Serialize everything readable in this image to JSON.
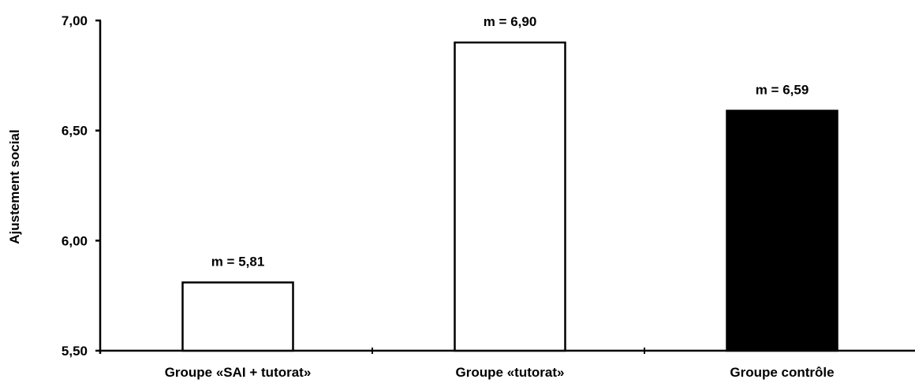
{
  "chart_data": {
    "type": "bar",
    "title": "",
    "xlabel": "",
    "ylabel": "Ajustement social",
    "ylim": [
      5.5,
      7.0
    ],
    "yticks": [
      "5,50",
      "6,00",
      "6,50",
      "7,00"
    ],
    "ytick_values": [
      5.5,
      6.0,
      6.5,
      7.0
    ],
    "categories": [
      "Groupe «SAI + tutorat»",
      "Groupe «tutorat»",
      "Groupe contrôle"
    ],
    "values": [
      5.81,
      6.9,
      6.59
    ],
    "data_labels": [
      "m = 5,81",
      "m = 6,90",
      "m = 6,59"
    ],
    "bar_colors": [
      "#ffffff",
      "#ffffff",
      "#000000"
    ],
    "grid": false,
    "legend": "none"
  }
}
